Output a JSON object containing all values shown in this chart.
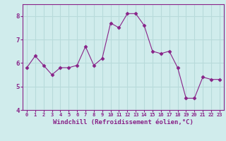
{
  "x": [
    0,
    1,
    2,
    3,
    4,
    5,
    6,
    7,
    8,
    9,
    10,
    11,
    12,
    13,
    14,
    15,
    16,
    17,
    18,
    19,
    20,
    21,
    22,
    23
  ],
  "y": [
    5.8,
    6.3,
    5.9,
    5.5,
    5.8,
    5.8,
    5.9,
    6.7,
    5.9,
    6.2,
    7.7,
    7.5,
    8.1,
    8.1,
    7.6,
    6.5,
    6.4,
    6.5,
    5.8,
    4.5,
    4.5,
    5.4,
    5.3,
    5.3
  ],
  "line_color": "#882288",
  "marker": "D",
  "marker_size": 2.5,
  "bg_color": "#d0ecec",
  "grid_color": "#b8dada",
  "xlabel": "Windchill (Refroidissement éolien,°C)",
  "xlabel_fontsize": 6.5,
  "tick_label_color": "#882288",
  "xlabel_color": "#882288",
  "xlim": [
    -0.5,
    23.5
  ],
  "ylim": [
    4,
    8.5
  ],
  "yticks": [
    4,
    5,
    6,
    7,
    8
  ],
  "xticks": [
    0,
    1,
    2,
    3,
    4,
    5,
    6,
    7,
    8,
    9,
    10,
    11,
    12,
    13,
    14,
    15,
    16,
    17,
    18,
    19,
    20,
    21,
    22,
    23
  ]
}
